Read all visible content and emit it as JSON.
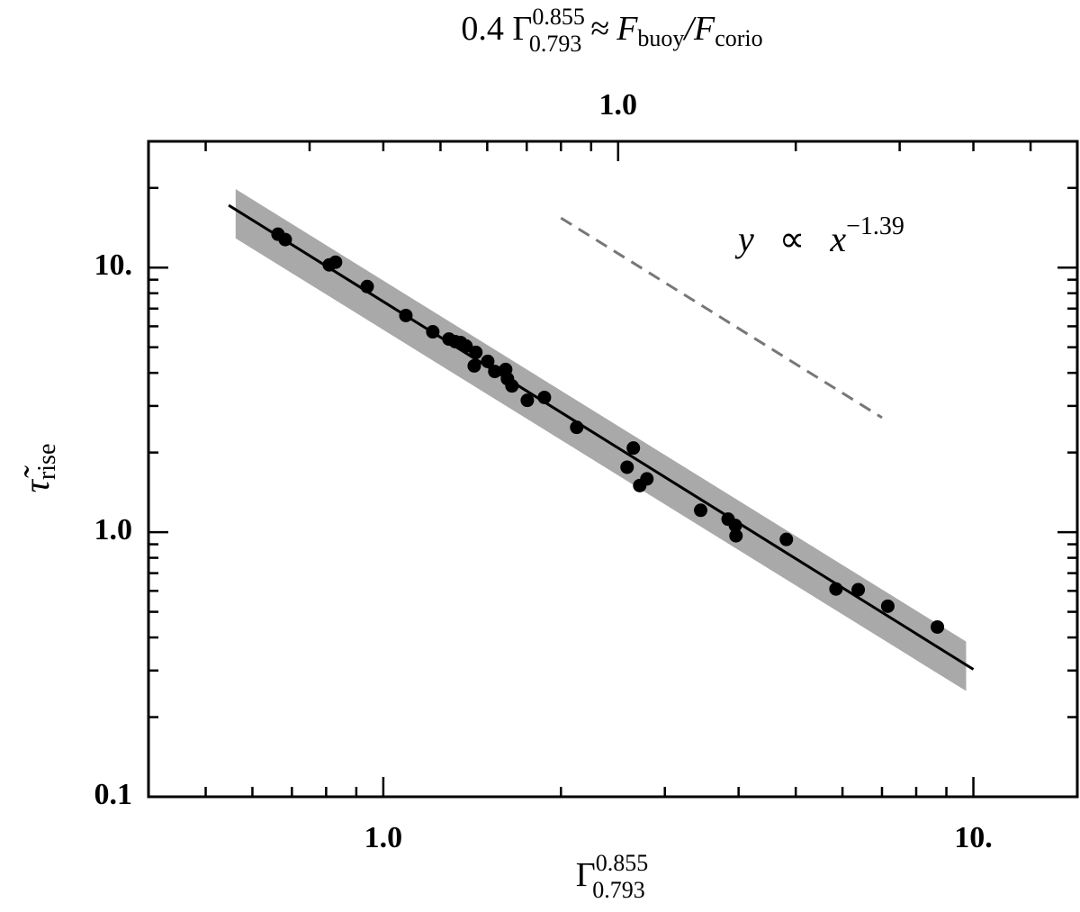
{
  "chart_data": {
    "type": "scatter",
    "x2label": [
      "0.4 Γ",
      "0.855",
      "0.793",
      "≈",
      "F",
      "buoy",
      "/F",
      "corio"
    ],
    "xlabel": [
      "Γ",
      "0.855",
      "0.793"
    ],
    "ylabel": [
      "τ̃",
      "rise"
    ],
    "annotation": [
      "y",
      "∝",
      "x",
      "−1.39"
    ],
    "log_x": true,
    "log_y": true,
    "xlim": [
      0.4,
      15
    ],
    "ylim": [
      0.1,
      30
    ],
    "x2lim": [
      0.16,
      6
    ],
    "xticks": [
      {
        "value": 1,
        "label": "1.0"
      },
      {
        "value": 10,
        "label": "10."
      }
    ],
    "xminor_ticks": [
      0.5,
      0.6,
      0.7,
      0.8,
      0.9,
      2,
      3,
      4,
      5,
      6,
      7,
      8,
      9
    ],
    "x2ticks": [
      {
        "value": 1,
        "label": "1.0"
      }
    ],
    "x2minor_ticks": [
      0.2,
      0.3,
      0.4,
      0.5,
      0.6,
      0.7,
      0.8,
      0.9,
      2,
      3,
      4,
      5
    ],
    "yticks": [
      0.1,
      {
        "value": 1,
        "label": "1.0"
      },
      {
        "value": 10,
        "label": "10."
      }
    ],
    "yminor_ticks": [
      0.2,
      0.3,
      0.4,
      0.5,
      0.6,
      0.7,
      0.8,
      0.9,
      2,
      3,
      4,
      5,
      6,
      7,
      8,
      9,
      20
    ],
    "points": {
      "color": "#000000",
      "x": [
        0.663,
        0.682,
        0.81,
        0.83,
        0.939,
        1.092,
        1.213,
        1.292,
        1.324,
        1.352,
        1.381,
        1.435,
        1.426,
        1.503,
        1.545,
        1.612,
        1.623,
        1.652,
        1.754,
        1.875,
        2.127,
        2.589,
        2.653,
        2.72,
        2.797,
        3.45,
        3.84,
        3.95,
        3.96,
        4.82,
        5.85,
        6.38,
        7.16,
        8.69
      ],
      "y": [
        13.37,
        12.76,
        10.24,
        10.48,
        8.48,
        6.59,
        5.72,
        5.37,
        5.25,
        5.21,
        5.05,
        4.78,
        4.25,
        4.42,
        4.05,
        4.12,
        3.8,
        3.57,
        3.15,
        3.23,
        2.49,
        1.76,
        2.08,
        1.5,
        1.59,
        1.21,
        1.12,
        1.06,
        0.969,
        0.939,
        0.61,
        0.606,
        0.525,
        0.438
      ]
    },
    "fit": {
      "color": "#000000",
      "x": [
        0.547,
        10
      ],
      "y": [
        17.2,
        0.303
      ]
    },
    "band": {
      "color": "#a9a9a9",
      "x": [
        0.562,
        9.72
      ],
      "upper": [
        19.8,
        0.386
      ],
      "lower": [
        12.9,
        0.251
      ]
    },
    "guide": {
      "color": "#777777",
      "x": [
        2,
        7
      ],
      "y": [
        15.4,
        2.71
      ]
    }
  }
}
